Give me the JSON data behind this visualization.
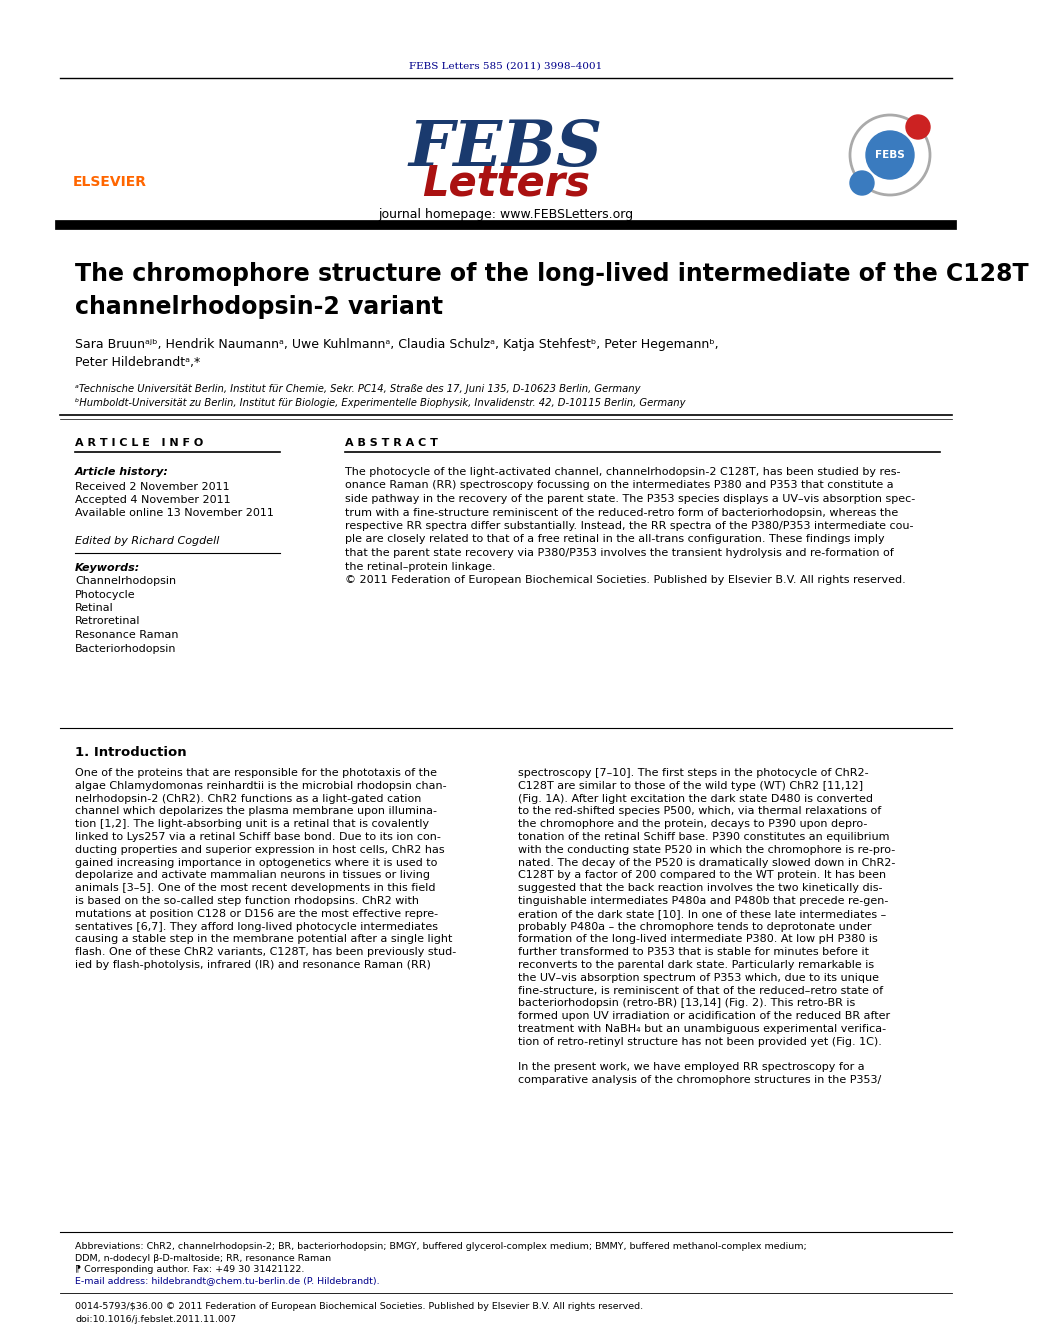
{
  "journal_ref": "FEBS Letters 585 (2011) 3998–4001",
  "journal_homepage": "journal homepage: www.FEBSLetters.org",
  "title_line1": "The chromophore structure of the long-lived intermediate of the C128T",
  "title_line2": "channelrhodopsin-2 variant",
  "authors": "Sara Bruunᵃʲᵇ, Hendrik Naumannᵃ, Uwe Kuhlmannᵃ, Claudia Schulzᵃ, Katja Stehfestᵇ, Peter Hegemannᵇ,",
  "author2": "Peter Hildebrandtᵃ,*",
  "affil_a": "ᵃTechnische Universität Berlin, Institut für Chemie, Sekr. PC14, Straße des 17, Juni 135, D-10623 Berlin, Germany",
  "affil_b": "ᵇHumboldt-Universität zu Berlin, Institut für Biologie, Experimentelle Biophysik, Invalidenstr. 42, D-10115 Berlin, Germany",
  "article_info_header": "A R T I C L E   I N F O",
  "abstract_header": "A B S T R A C T",
  "article_history_label": "Article history:",
  "received": "Received 2 November 2011",
  "accepted": "Accepted 4 November 2011",
  "available": "Available online 13 November 2011",
  "edited_by": "Edited by Richard Cogdell",
  "keywords_label": "Keywords:",
  "keywords": [
    "Channelrhodopsin",
    "Photocycle",
    "Retinal",
    "Retroretinal",
    "Resonance Raman",
    "Bacteriorhodopsin"
  ],
  "abstract_lines": [
    "The photocycle of the light-activated channel, channelrhodopsin-2 C128T, has been studied by res-",
    "onance Raman (RR) spectroscopy focussing on the intermediates P380 and P353 that constitute a",
    "side pathway in the recovery of the parent state. The P353 species displays a UV–vis absorption spec-",
    "trum with a fine-structure reminiscent of the reduced-retro form of bacteriorhodopsin, whereas the",
    "respective RR spectra differ substantially. Instead, the RR spectra of the P380/P353 intermediate cou-",
    "ple are closely related to that of a free retinal in the all-trans configuration. These findings imply",
    "that the parent state recovery via P380/P353 involves the transient hydrolysis and re-formation of",
    "the retinal–protein linkage.",
    "© 2011 Federation of European Biochemical Societies. Published by Elsevier B.V. All rights reserved."
  ],
  "section1_header": "1. Introduction",
  "col1_lines": [
    "One of the proteins that are responsible for the phototaxis of the",
    "algae Chlamydomonas reinhardtii is the microbial rhodopsin chan-",
    "nelrhodopsin-2 (ChR2). ChR2 functions as a light-gated cation",
    "channel which depolarizes the plasma membrane upon illumina-",
    "tion [1,2]. The light-absorbing unit is a retinal that is covalently",
    "linked to Lys257 via a retinal Schiff base bond. Due to its ion con-",
    "ducting properties and superior expression in host cells, ChR2 has",
    "gained increasing importance in optogenetics where it is used to",
    "depolarize and activate mammalian neurons in tissues or living",
    "animals [3–5]. One of the most recent developments in this field",
    "is based on the so-called step function rhodopsins. ChR2 with",
    "mutations at position C128 or D156 are the most effective repre-",
    "sentatives [6,7]. They afford long-lived photocycle intermediates",
    "causing a stable step in the membrane potential after a single light",
    "flash. One of these ChR2 variants, C128T, has been previously stud-",
    "ied by flash-photolysis, infrared (IR) and resonance Raman (RR)"
  ],
  "col2_lines": [
    "spectroscopy [7–10]. The first steps in the photocycle of ChR2-",
    "C128T are similar to those of the wild type (WT) ChR2 [11,12]",
    "(Fig. 1A). After light excitation the dark state D480 is converted",
    "to the red-shifted species P500, which, via thermal relaxations of",
    "the chromophore and the protein, decays to P390 upon depro-",
    "tonation of the retinal Schiff base. P390 constitutes an equilibrium",
    "with the conducting state P520 in which the chromophore is re-pro-",
    "nated. The decay of the P520 is dramatically slowed down in ChR2-",
    "C128T by a factor of 200 compared to the WT protein. It has been",
    "suggested that the back reaction involves the two kinetically dis-",
    "tinguishable intermediates P480a and P480b that precede re-gen-",
    "eration of the dark state [10]. In one of these late intermediates –",
    "probably P480a – the chromophore tends to deprotonate under",
    "formation of the long-lived intermediate P380. At low pH P380 is",
    "further transformed to P353 that is stable for minutes before it",
    "reconverts to the parental dark state. Particularly remarkable is",
    "the UV–vis absorption spectrum of P353 which, due to its unique",
    "fine-structure, is reminiscent of that of the reduced–retro state of",
    "bacteriorhodopsin (retro-BR) [13,14] (Fig. 2). This retro-BR is",
    "formed upon UV irradiation or acidification of the reduced BR after",
    "treatment with NaBH₄ but an unambiguous experimental verifica-",
    "tion of retro-retinyl structure has not been provided yet (Fig. 1C).",
    "",
    "In the present work, we have employed RR spectroscopy for a",
    "comparative analysis of the chromophore structures in the P353/"
  ],
  "footer_abbrev": "Abbreviations: ChR2, channelrhodopsin-2; BR, bacteriorhodopsin; BMGY, buffered glycerol-complex medium; BMMY, buffered methanol-complex medium;",
  "footer_abbrev2": "DDM, n-dodecyl β-D-maltoside; RR, resonance Raman",
  "footer_corresponding": "⁋ Corresponding author. Fax: +49 30 31421122.",
  "footer_email": "E-mail address: hildebrandt@chem.tu-berlin.de (P. Hildebrandt).",
  "footer_bottom1": "0014-5793/$36.00 © 2011 Federation of European Biochemical Societies. Published by Elsevier B.V. All rights reserved.",
  "footer_bottom2": "doi:10.1016/j.febslet.2011.11.007",
  "elsevier_color": "#FF6600",
  "febs_blue": "#1a3a6e",
  "febs_red": "#aa1111",
  "link_color": "#00008B",
  "text_color": "#000000",
  "bg_color": "#ffffff"
}
